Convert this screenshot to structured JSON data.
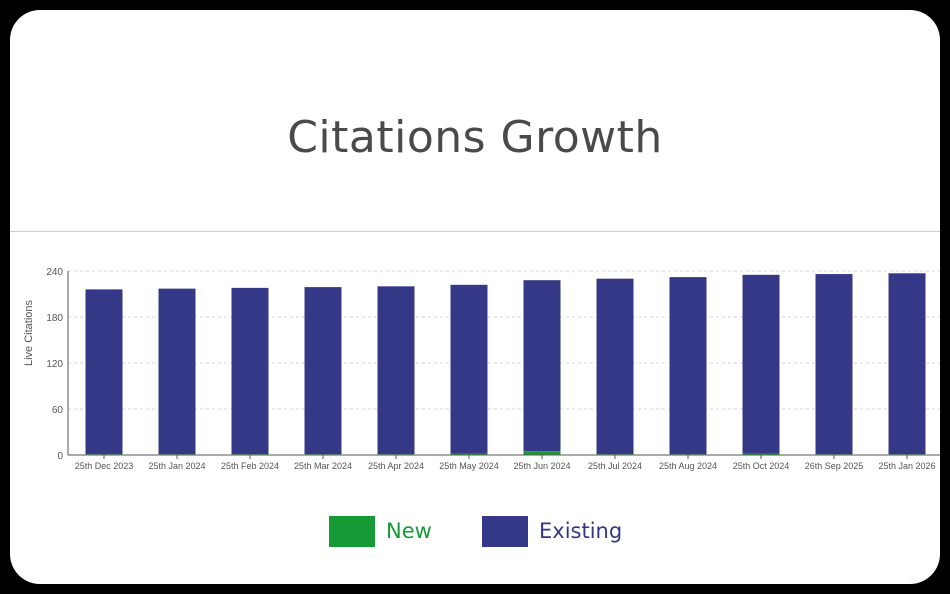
{
  "colors": {
    "new": "#169a36",
    "existing": "#343887",
    "grid": "#d6d6d6",
    "axis": "#555555",
    "tick_text": "#555555"
  },
  "chart_data": {
    "type": "bar",
    "stacked": true,
    "title": "Citations Growth",
    "xlabel": "",
    "ylabel": "Live Citations",
    "ylim": [
      0,
      240
    ],
    "yticks": [
      0,
      60,
      120,
      180,
      240
    ],
    "grid": true,
    "legend_position": "bottom-center",
    "categories": [
      "25th Dec 2023",
      "25th Jan 2024",
      "25th Feb 2024",
      "25th Mar 2024",
      "25th Apr 2024",
      "25th May 2024",
      "25th Jun 2024",
      "25th Jul 2024",
      "25th Aug 2024",
      "25th Oct 2024",
      "26th Sep 2025",
      "25th Jan 2026"
    ],
    "series": [
      {
        "name": "New",
        "values": [
          1,
          1,
          1,
          1,
          1,
          2,
          5,
          1,
          1,
          2,
          1,
          1
        ]
      },
      {
        "name": "Existing",
        "values": [
          215,
          216,
          217,
          218,
          219,
          220,
          223,
          229,
          231,
          233,
          235,
          236
        ]
      }
    ]
  }
}
